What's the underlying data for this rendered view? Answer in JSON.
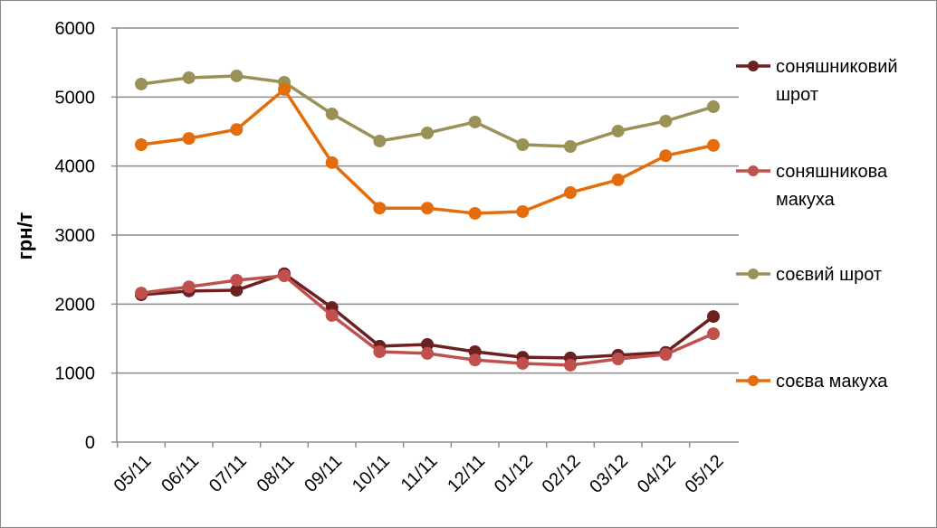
{
  "chart_data": {
    "type": "line",
    "title": "",
    "xlabel": "",
    "ylabel": "грн/т",
    "ylim": [
      0,
      6000
    ],
    "yticks": [
      0,
      1000,
      2000,
      3000,
      4000,
      5000,
      6000
    ],
    "grid": true,
    "legend_placement": "right",
    "categories": [
      "05/11",
      "06/11",
      "07/11",
      "08/11",
      "09/11",
      "10/11",
      "11/11",
      "12/11",
      "01/12",
      "02/12",
      "03/12",
      "04/12",
      "05/12"
    ],
    "series": [
      {
        "name": "соняшниковий шрот",
        "name_lines": [
          "соняшниковий",
          "шрот"
        ],
        "color": "#6b2122",
        "values": [
          2135,
          2190,
          2200,
          2440,
          1950,
          1390,
          1415,
          1310,
          1230,
          1220,
          1260,
          1300,
          1820
        ]
      },
      {
        "name": "соняшникова макуха",
        "name_lines": [
          "соняшникова",
          "макуха"
        ],
        "color": "#c0504d",
        "values": [
          2160,
          2250,
          2345,
          2410,
          1835,
          1310,
          1285,
          1190,
          1140,
          1115,
          1205,
          1270,
          1570
        ]
      },
      {
        "name": "соєвий шрот",
        "name_lines": [
          "соєвий шрот"
        ],
        "color": "#9a9157",
        "values": [
          5188,
          5280,
          5306,
          5214,
          4756,
          4363,
          4480,
          4638,
          4310,
          4284,
          4507,
          4651,
          4860
        ]
      },
      {
        "name": "соєва макуха",
        "name_lines": [
          "соєва макуха"
        ],
        "color": "#e46c0a",
        "values": [
          4310,
          4400,
          4530,
          5110,
          4050,
          3390,
          3390,
          3315,
          3340,
          3615,
          3800,
          4150,
          4300
        ]
      }
    ]
  }
}
